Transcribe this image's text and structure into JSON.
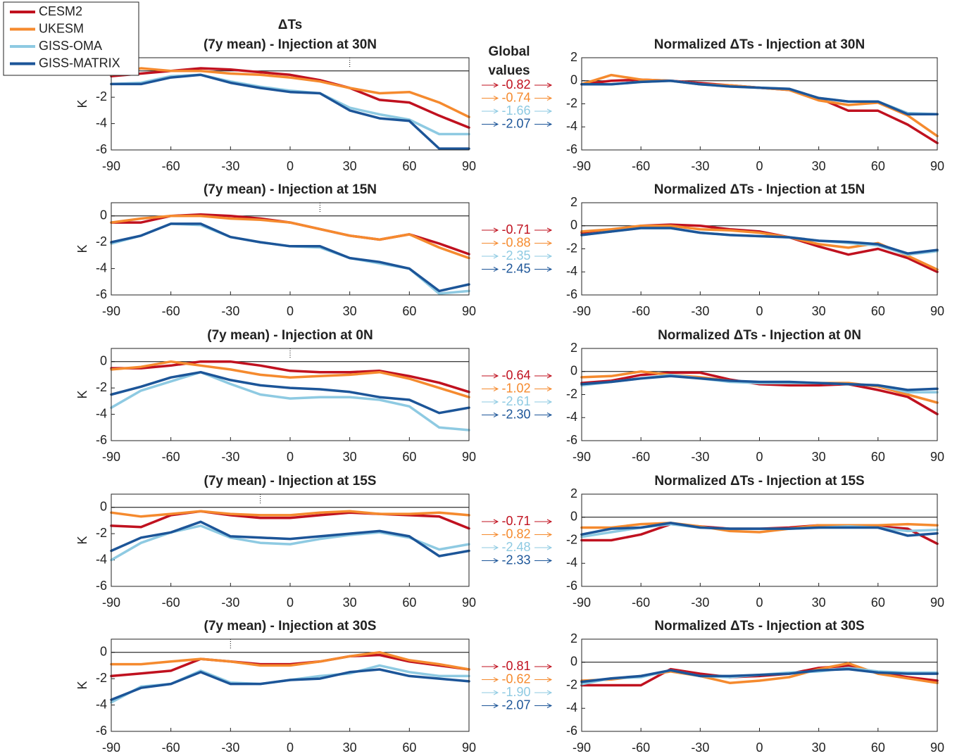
{
  "chart_data": [
    {
      "type": "line",
      "supertitle": "ΔTs",
      "title": "(7y mean) - Injection at 30N",
      "ylabel": "K",
      "injection_lat": 30,
      "legend": "top-left",
      "global_values_title": "Global values",
      "x": [
        -90,
        -75,
        -60,
        -45,
        -30,
        -15,
        0,
        15,
        30,
        45,
        60,
        75,
        90
      ],
      "xlim": [
        -90,
        90
      ],
      "xticks": [
        -90,
        -60,
        -30,
        0,
        30,
        60,
        90
      ],
      "ylim": [
        -6,
        1
      ],
      "yticks": [
        -6,
        -4,
        -2,
        0
      ],
      "series": [
        {
          "name": "CESM2",
          "color": "#c0111f",
          "values": [
            -0.4,
            -0.2,
            0.0,
            0.2,
            0.1,
            -0.1,
            -0.3,
            -0.7,
            -1.3,
            -2.2,
            -2.4,
            -3.4,
            -4.3
          ]
        },
        {
          "name": "UKESM",
          "color": "#f58a2e",
          "values": [
            -0.3,
            0.2,
            0.0,
            0.0,
            -0.2,
            -0.3,
            -0.5,
            -0.8,
            -1.3,
            -1.7,
            -1.6,
            -2.4,
            -3.5
          ]
        },
        {
          "name": "GISS-OMA",
          "color": "#8ecae2",
          "values": [
            -1.0,
            -0.9,
            -0.4,
            -0.3,
            -0.8,
            -1.2,
            -1.5,
            -1.7,
            -2.8,
            -3.3,
            -3.7,
            -4.8,
            -4.8
          ]
        },
        {
          "name": "GISS-MATRIX",
          "color": "#1c5598",
          "values": [
            -1.0,
            -1.0,
            -0.5,
            -0.3,
            -0.9,
            -1.3,
            -1.6,
            -1.7,
            -3.0,
            -3.6,
            -3.8,
            -5.9,
            -5.9
          ]
        }
      ],
      "global_values": [
        -0.82,
        -0.74,
        -1.66,
        -2.07
      ]
    },
    {
      "type": "line",
      "title": "Normalized ΔTs - Injection at 30N",
      "x": [
        -90,
        -75,
        -60,
        -45,
        -30,
        -15,
        0,
        15,
        30,
        45,
        60,
        75,
        90
      ],
      "xlim": [
        -90,
        90
      ],
      "xticks": [
        -90,
        -60,
        -30,
        0,
        30,
        60,
        90
      ],
      "ylim": [
        -6,
        2
      ],
      "yticks": [
        -6,
        -4,
        -2,
        0,
        2
      ],
      "series": [
        {
          "color": "#c0111f",
          "values": [
            -0.3,
            0.0,
            0.1,
            0.0,
            -0.2,
            -0.4,
            -0.6,
            -0.8,
            -1.5,
            -2.6,
            -2.6,
            -3.8,
            -5.4
          ]
        },
        {
          "color": "#f58a2e",
          "values": [
            -0.3,
            0.5,
            0.1,
            0.0,
            -0.3,
            -0.4,
            -0.6,
            -0.8,
            -1.7,
            -2.1,
            -1.9,
            -3.0,
            -4.8
          ]
        },
        {
          "color": "#8ecae2",
          "values": [
            -0.3,
            -0.3,
            -0.1,
            0.0,
            -0.3,
            -0.5,
            -0.6,
            -0.7,
            -1.5,
            -1.8,
            -1.8,
            -2.8,
            -2.9
          ]
        },
        {
          "color": "#1c5598",
          "values": [
            -0.3,
            -0.3,
            -0.1,
            0.0,
            -0.3,
            -0.5,
            -0.6,
            -0.7,
            -1.5,
            -1.8,
            -1.8,
            -2.9,
            -2.9
          ]
        }
      ]
    },
    {
      "type": "line",
      "title": "(7y mean) - Injection at 15N",
      "ylabel": "K",
      "injection_lat": 15,
      "x": [
        -90,
        -75,
        -60,
        -45,
        -30,
        -15,
        0,
        15,
        30,
        45,
        60,
        75,
        90
      ],
      "xlim": [
        -90,
        90
      ],
      "xticks": [
        -90,
        -60,
        -30,
        0,
        30,
        60,
        90
      ],
      "ylim": [
        -6,
        1
      ],
      "yticks": [
        -6,
        -4,
        -2,
        0
      ],
      "series": [
        {
          "color": "#c0111f",
          "values": [
            -0.5,
            -0.5,
            0.0,
            0.1,
            0.0,
            -0.2,
            -0.5,
            -1.0,
            -1.5,
            -1.8,
            -1.4,
            -2.1,
            -2.9
          ]
        },
        {
          "color": "#f58a2e",
          "values": [
            -0.5,
            -0.2,
            0.0,
            0.0,
            -0.2,
            -0.3,
            -0.5,
            -1.0,
            -1.5,
            -1.8,
            -1.4,
            -2.4,
            -3.2
          ]
        },
        {
          "color": "#8ecae2",
          "values": [
            -2.1,
            -1.5,
            -0.6,
            -0.7,
            -1.6,
            -2.0,
            -2.3,
            -2.4,
            -3.2,
            -3.6,
            -4.0,
            -5.9,
            -5.7
          ]
        },
        {
          "color": "#1c5598",
          "values": [
            -2.0,
            -1.5,
            -0.6,
            -0.6,
            -1.6,
            -2.0,
            -2.3,
            -2.3,
            -3.2,
            -3.5,
            -4.0,
            -5.7,
            -5.2
          ]
        }
      ],
      "global_values": [
        -0.71,
        -0.88,
        -2.35,
        -2.45
      ]
    },
    {
      "type": "line",
      "title": "Normalized ΔTs - Injection at 15N",
      "x": [
        -90,
        -75,
        -60,
        -45,
        -30,
        -15,
        0,
        15,
        30,
        45,
        60,
        75,
        90
      ],
      "xlim": [
        -90,
        90
      ],
      "xticks": [
        -90,
        -60,
        -30,
        0,
        30,
        60,
        90
      ],
      "ylim": [
        -6,
        2
      ],
      "yticks": [
        -6,
        -4,
        -2,
        0,
        2
      ],
      "series": [
        {
          "color": "#c0111f",
          "values": [
            -0.6,
            -0.5,
            0.0,
            0.1,
            0.0,
            -0.3,
            -0.5,
            -1.0,
            -1.8,
            -2.5,
            -2.0,
            -2.8,
            -4.0
          ]
        },
        {
          "color": "#f58a2e",
          "values": [
            -0.5,
            -0.3,
            0.0,
            0.0,
            -0.3,
            -0.4,
            -0.6,
            -1.0,
            -1.6,
            -1.9,
            -1.5,
            -2.6,
            -3.8
          ]
        },
        {
          "color": "#8ecae2",
          "values": [
            -0.8,
            -0.5,
            -0.2,
            -0.2,
            -0.6,
            -0.8,
            -0.9,
            -1.0,
            -1.3,
            -1.5,
            -1.7,
            -2.5,
            -2.2
          ]
        },
        {
          "color": "#1c5598",
          "values": [
            -0.8,
            -0.5,
            -0.2,
            -0.2,
            -0.6,
            -0.8,
            -0.9,
            -1.0,
            -1.3,
            -1.4,
            -1.6,
            -2.4,
            -2.1
          ]
        }
      ]
    },
    {
      "type": "line",
      "title": "(7y mean) - Injection at 0N",
      "ylabel": "K",
      "injection_lat": 0,
      "x": [
        -90,
        -75,
        -60,
        -45,
        -30,
        -15,
        0,
        15,
        30,
        45,
        60,
        75,
        90
      ],
      "xlim": [
        -90,
        90
      ],
      "xticks": [
        -90,
        -60,
        -30,
        0,
        30,
        60,
        90
      ],
      "ylim": [
        -6,
        1
      ],
      "yticks": [
        -6,
        -4,
        -2,
        0
      ],
      "series": [
        {
          "color": "#c0111f",
          "values": [
            -0.5,
            -0.5,
            -0.3,
            0.0,
            0.0,
            -0.3,
            -0.7,
            -0.8,
            -0.8,
            -0.7,
            -1.1,
            -1.6,
            -2.3
          ]
        },
        {
          "color": "#f58a2e",
          "values": [
            -0.6,
            -0.4,
            0.0,
            -0.3,
            -0.6,
            -1.0,
            -1.2,
            -1.1,
            -1.0,
            -0.8,
            -1.3,
            -2.0,
            -2.7
          ]
        },
        {
          "color": "#8ecae2",
          "values": [
            -3.5,
            -2.2,
            -1.5,
            -0.8,
            -1.7,
            -2.5,
            -2.8,
            -2.7,
            -2.7,
            -2.9,
            -3.4,
            -5.0,
            -5.2
          ]
        },
        {
          "color": "#1c5598",
          "values": [
            -2.5,
            -1.9,
            -1.2,
            -0.8,
            -1.4,
            -1.8,
            -2.0,
            -2.1,
            -2.3,
            -2.7,
            -2.9,
            -3.9,
            -3.5
          ]
        }
      ],
      "global_values": [
        -0.64,
        -1.02,
        -2.61,
        -2.3
      ],
      "global_value_labels": [
        "-0.64",
        "-1.02",
        "-2.61",
        "-2.30"
      ]
    },
    {
      "type": "line",
      "title": "Normalized ΔTs - Injection at 0N",
      "x": [
        -90,
        -75,
        -60,
        -45,
        -30,
        -15,
        0,
        15,
        30,
        45,
        60,
        75,
        90
      ],
      "xlim": [
        -90,
        90
      ],
      "xticks": [
        -90,
        -60,
        -30,
        0,
        30,
        60,
        90
      ],
      "ylim": [
        -6,
        2
      ],
      "yticks": [
        -6,
        -4,
        -2,
        0,
        2
      ],
      "series": [
        {
          "color": "#c0111f",
          "values": [
            -1.0,
            -0.8,
            -0.3,
            -0.1,
            -0.1,
            -0.7,
            -1.1,
            -1.2,
            -1.2,
            -1.1,
            -1.6,
            -2.2,
            -3.7
          ]
        },
        {
          "color": "#f58a2e",
          "values": [
            -0.5,
            -0.4,
            0.0,
            -0.3,
            -0.5,
            -0.8,
            -1.0,
            -1.0,
            -1.0,
            -1.0,
            -1.3,
            -2.0,
            -2.7
          ]
        },
        {
          "color": "#8ecae2",
          "values": [
            -1.2,
            -0.9,
            -0.6,
            -0.3,
            -0.6,
            -0.9,
            -1.0,
            -1.0,
            -1.0,
            -1.1,
            -1.2,
            -1.8,
            -1.8
          ]
        },
        {
          "color": "#1c5598",
          "values": [
            -1.1,
            -0.9,
            -0.6,
            -0.4,
            -0.6,
            -0.8,
            -0.9,
            -0.9,
            -1.0,
            -1.1,
            -1.2,
            -1.6,
            -1.5
          ]
        }
      ]
    },
    {
      "type": "line",
      "title": "(7y mean) - Injection at 15S",
      "ylabel": "K",
      "injection_lat": -15,
      "x": [
        -90,
        -75,
        -60,
        -45,
        -30,
        -15,
        0,
        15,
        30,
        45,
        60,
        75,
        90
      ],
      "xlim": [
        -90,
        90
      ],
      "xticks": [
        -90,
        -60,
        -30,
        0,
        30,
        60,
        90
      ],
      "ylim": [
        -6,
        1
      ],
      "yticks": [
        -6,
        -4,
        -2,
        0
      ],
      "series": [
        {
          "color": "#c0111f",
          "values": [
            -1.4,
            -1.5,
            -0.6,
            -0.3,
            -0.6,
            -0.8,
            -0.8,
            -0.6,
            -0.4,
            -0.5,
            -0.6,
            -0.7,
            -1.6
          ]
        },
        {
          "color": "#f58a2e",
          "values": [
            -0.4,
            -0.7,
            -0.5,
            -0.3,
            -0.5,
            -0.6,
            -0.6,
            -0.4,
            -0.3,
            -0.5,
            -0.5,
            -0.4,
            -0.6
          ]
        },
        {
          "color": "#8ecae2",
          "values": [
            -4.0,
            -2.7,
            -1.9,
            -1.4,
            -2.3,
            -2.7,
            -2.8,
            -2.4,
            -2.1,
            -1.9,
            -2.3,
            -3.2,
            -2.8
          ]
        },
        {
          "color": "#1c5598",
          "values": [
            -3.3,
            -2.3,
            -1.9,
            -1.1,
            -2.2,
            -2.3,
            -2.4,
            -2.2,
            -2.0,
            -1.8,
            -2.2,
            -3.7,
            -3.3
          ]
        }
      ],
      "global_values": [
        -0.71,
        -0.82,
        -2.48,
        -2.33
      ]
    },
    {
      "type": "line",
      "title": "Normalized ΔTs - Injection at 15S",
      "x": [
        -90,
        -75,
        -60,
        -45,
        -30,
        -15,
        0,
        15,
        30,
        45,
        60,
        75,
        90
      ],
      "xlim": [
        -90,
        90
      ],
      "xticks": [
        -90,
        -60,
        -30,
        0,
        30,
        60,
        90
      ],
      "ylim": [
        -6,
        2
      ],
      "yticks": [
        -6,
        -4,
        -2,
        0,
        2
      ],
      "series": [
        {
          "color": "#c0111f",
          "values": [
            -2.0,
            -2.0,
            -1.5,
            -0.6,
            -0.8,
            -1.0,
            -1.0,
            -0.9,
            -0.7,
            -0.8,
            -0.8,
            -1.0,
            -2.3
          ]
        },
        {
          "color": "#f58a2e",
          "values": [
            -0.9,
            -0.9,
            -0.6,
            -0.5,
            -0.8,
            -1.2,
            -1.3,
            -1.0,
            -0.7,
            -0.7,
            -0.7,
            -0.6,
            -0.7
          ]
        },
        {
          "color": "#8ecae2",
          "values": [
            -1.7,
            -1.3,
            -0.9,
            -0.6,
            -0.9,
            -1.0,
            -1.0,
            -1.0,
            -0.9,
            -0.8,
            -0.9,
            -1.2,
            -1.1
          ]
        },
        {
          "color": "#1c5598",
          "values": [
            -1.5,
            -1.0,
            -0.9,
            -0.5,
            -0.9,
            -1.0,
            -1.0,
            -1.0,
            -0.9,
            -0.9,
            -0.9,
            -1.6,
            -1.4
          ]
        }
      ]
    },
    {
      "type": "line",
      "title": "(7y mean) - Injection at 30S",
      "ylabel": "K",
      "injection_lat": -30,
      "x": [
        -90,
        -75,
        -60,
        -45,
        -30,
        -15,
        0,
        15,
        30,
        45,
        60,
        75,
        90
      ],
      "xlim": [
        -90,
        90
      ],
      "xticks": [
        -90,
        -60,
        -30,
        0,
        30,
        60,
        90
      ],
      "ylim": [
        -6,
        1
      ],
      "yticks": [
        -6,
        -4,
        -2,
        0
      ],
      "series": [
        {
          "color": "#c0111f",
          "values": [
            -1.8,
            -1.6,
            -1.4,
            -0.5,
            -0.7,
            -0.9,
            -0.9,
            -0.7,
            -0.3,
            -0.2,
            -0.7,
            -1.0,
            -1.3
          ]
        },
        {
          "color": "#f58a2e",
          "values": [
            -0.9,
            -0.9,
            -0.7,
            -0.5,
            -0.7,
            -1.0,
            -1.0,
            -0.7,
            -0.3,
            0.0,
            -0.6,
            -0.9,
            -1.3
          ]
        },
        {
          "color": "#8ecae2",
          "values": [
            -3.8,
            -2.6,
            -2.4,
            -1.4,
            -2.3,
            -2.4,
            -2.1,
            -1.8,
            -1.6,
            -1.0,
            -1.5,
            -1.8,
            -1.8
          ]
        },
        {
          "color": "#1c5598",
          "values": [
            -3.6,
            -2.7,
            -2.4,
            -1.5,
            -2.4,
            -2.4,
            -2.1,
            -2.0,
            -1.5,
            -1.3,
            -1.8,
            -2.0,
            -2.2
          ]
        }
      ],
      "global_values": [
        -0.81,
        -0.62,
        -1.9,
        -2.07
      ],
      "global_value_labels": [
        "-0.81",
        "-0.62",
        "-1.90",
        "-2.07"
      ]
    },
    {
      "type": "line",
      "title": "Normalized ΔTs - Injection at 30S",
      "x": [
        -90,
        -75,
        -60,
        -45,
        -30,
        -15,
        0,
        15,
        30,
        45,
        60,
        75,
        90
      ],
      "xlim": [
        -90,
        90
      ],
      "xticks": [
        -90,
        -60,
        -30,
        0,
        30,
        60,
        90
      ],
      "ylim": [
        -6,
        2
      ],
      "yticks": [
        -6,
        -4,
        -2,
        0,
        2
      ],
      "series": [
        {
          "color": "#c0111f",
          "values": [
            -2.0,
            -2.0,
            -2.0,
            -0.6,
            -1.0,
            -1.3,
            -1.2,
            -1.0,
            -0.5,
            -0.3,
            -0.9,
            -1.3,
            -1.6
          ]
        },
        {
          "color": "#f58a2e",
          "values": [
            -1.6,
            -1.5,
            -1.2,
            -0.8,
            -1.2,
            -1.8,
            -1.6,
            -1.3,
            -0.6,
            -0.1,
            -1.0,
            -1.4,
            -1.8
          ]
        },
        {
          "color": "#8ecae2",
          "values": [
            -1.9,
            -1.4,
            -1.3,
            -0.7,
            -1.2,
            -1.3,
            -1.1,
            -0.9,
            -0.8,
            -0.5,
            -0.8,
            -0.9,
            -0.9
          ]
        },
        {
          "color": "#1c5598",
          "values": [
            -1.7,
            -1.4,
            -1.2,
            -0.7,
            -1.2,
            -1.2,
            -1.1,
            -1.0,
            -0.7,
            -0.6,
            -0.9,
            -1.0,
            -1.0
          ]
        }
      ]
    }
  ]
}
